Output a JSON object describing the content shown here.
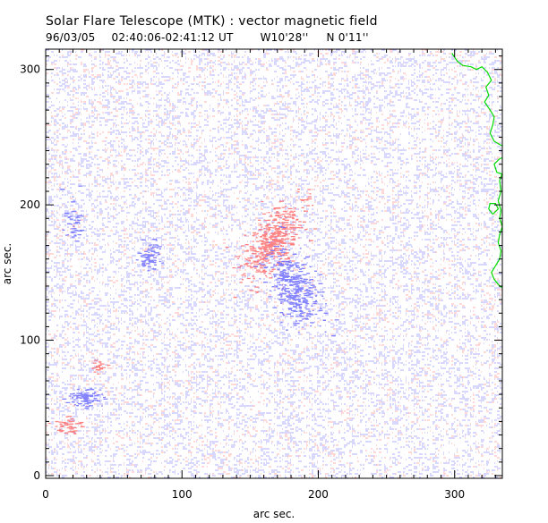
{
  "header": {
    "title": "Solar Flare Telescope (MTK) : vector magnetic field",
    "date": "96/03/05",
    "time_range": "02:40:06-02:41:12 UT",
    "position_w": "W10'28''",
    "position_n": "N 0'11''"
  },
  "colors": {
    "positive": "#ff7070",
    "negative": "#7070ff",
    "contour": "#00dd00",
    "axis": "#000000"
  },
  "chart_data": {
    "type": "heatmap",
    "title": "Solar Flare Telescope (MTK) : vector magnetic field",
    "xlabel": "arc sec.",
    "ylabel": "arc sec.",
    "xlim": [
      0,
      335
    ],
    "ylim": [
      -2,
      315
    ],
    "xticks": [
      0,
      100,
      200,
      300
    ],
    "yticks": [
      0,
      100,
      200,
      300
    ],
    "x_tick_labels": [
      "0",
      "100",
      "200",
      "300"
    ],
    "y_tick_labels": [
      "0",
      "100",
      "200",
      "300"
    ],
    "background_noise": {
      "negative_density": 0.55,
      "positive_density": 0.22
    },
    "polarity_patches": [
      {
        "name": "positive-main",
        "polarity": "positive",
        "x": 165,
        "y": 172,
        "sx": 7,
        "sy": 16,
        "rotation_deg": -35,
        "count": 420
      },
      {
        "name": "negative-main",
        "polarity": "negative",
        "x": 182,
        "y": 138,
        "sx": 8,
        "sy": 16,
        "rotation_deg": 25,
        "count": 360
      },
      {
        "name": "negative-left-mid",
        "polarity": "negative",
        "x": 75,
        "y": 162,
        "sx": 4,
        "sy": 5,
        "rotation_deg": 0,
        "count": 70
      },
      {
        "name": "negative-upper-left",
        "polarity": "negative",
        "x": 20,
        "y": 185,
        "sx": 4,
        "sy": 8,
        "rotation_deg": 0,
        "count": 45
      },
      {
        "name": "negative-lower-left",
        "polarity": "negative",
        "x": 28,
        "y": 58,
        "sx": 6,
        "sy": 3,
        "rotation_deg": 0,
        "count": 90
      },
      {
        "name": "positive-lower-left",
        "polarity": "positive",
        "x": 15,
        "y": 36,
        "sx": 5,
        "sy": 3,
        "rotation_deg": 0,
        "count": 45
      },
      {
        "name": "positive-small",
        "polarity": "positive",
        "x": 38,
        "y": 80,
        "sx": 3,
        "sy": 2,
        "rotation_deg": 0,
        "count": 20
      }
    ],
    "contours": [
      {
        "name": "limb-contour",
        "points": [
          [
            298,
            312
          ],
          [
            302,
            306
          ],
          [
            306,
            303
          ],
          [
            312,
            302
          ],
          [
            316,
            300
          ],
          [
            320,
            302
          ],
          [
            324,
            298
          ],
          [
            327,
            292
          ],
          [
            323,
            287
          ],
          [
            325,
            281
          ],
          [
            322,
            276
          ],
          [
            326,
            270
          ],
          [
            329,
            265
          ],
          [
            328,
            259
          ],
          [
            326,
            253
          ],
          [
            329,
            247
          ],
          [
            334,
            244
          ],
          [
            340,
            242
          ],
          [
            338,
            236
          ],
          [
            333,
            234
          ],
          [
            329,
            230
          ],
          [
            331,
            224
          ],
          [
            337,
            222
          ],
          [
            340,
            222
          ]
        ]
      },
      {
        "name": "limb-contour-lower",
        "points": [
          [
            340,
            230
          ],
          [
            336,
            226
          ],
          [
            333,
            218
          ],
          [
            334,
            210
          ],
          [
            332,
            203
          ],
          [
            334,
            196
          ],
          [
            333,
            190
          ],
          [
            335,
            184
          ],
          [
            333,
            178
          ],
          [
            332,
            172
          ],
          [
            334,
            166
          ],
          [
            333,
            160
          ],
          [
            330,
            155
          ],
          [
            327,
            150
          ],
          [
            329,
            145
          ],
          [
            333,
            140
          ],
          [
            338,
            137
          ],
          [
            340,
            135
          ]
        ]
      },
      {
        "name": "limb-contour-small",
        "points": [
          [
            328,
            193
          ],
          [
            325,
            197
          ],
          [
            326,
            201
          ],
          [
            330,
            201
          ],
          [
            332,
            197
          ],
          [
            328,
            193
          ]
        ]
      }
    ]
  }
}
